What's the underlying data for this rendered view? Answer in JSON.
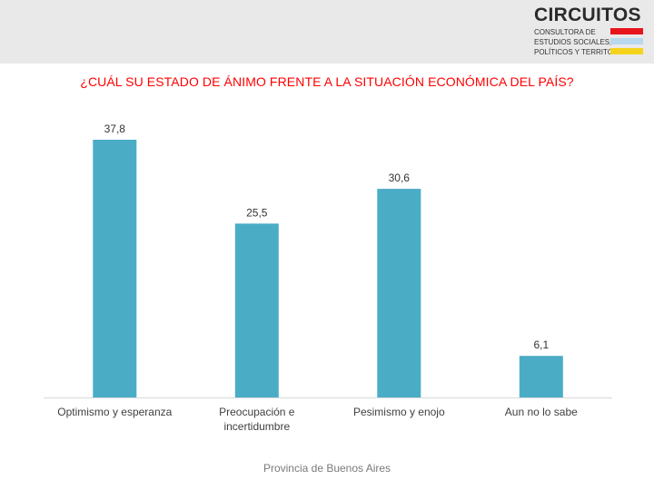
{
  "header": {
    "logo": {
      "title": "CIRCUITOS",
      "lines": [
        "CONSULTORA DE",
        "ESTUDIOS SOCIALES,",
        "POLÍTICOS Y TERRITORIALES"
      ],
      "bar_colors": [
        "#e8141c",
        "#b9d7ef",
        "#f5d31c"
      ]
    }
  },
  "footer": {
    "label": "Provincia de Buenos Aires"
  },
  "chart_data": {
    "type": "bar",
    "title": "¿CUÁL SU ESTADO DE ÁNIMO FRENTE A LA SITUACIÓN ECONÓMICA DEL PAÍS?",
    "categories": [
      [
        "Optimismo y esperanza"
      ],
      [
        "Preocupación e",
        "incertidumbre"
      ],
      [
        "Pesimismo y enojo"
      ],
      [
        "Aun no lo sabe"
      ]
    ],
    "values": [
      37.8,
      25.5,
      30.6,
      6.1
    ],
    "value_labels": [
      "37,8",
      "25,5",
      "30,6",
      "6,1"
    ],
    "ylim": [
      0,
      40
    ],
    "bar_color": "#4bacc6",
    "title_color": "#ff0000",
    "grid": false,
    "legend": "none"
  }
}
